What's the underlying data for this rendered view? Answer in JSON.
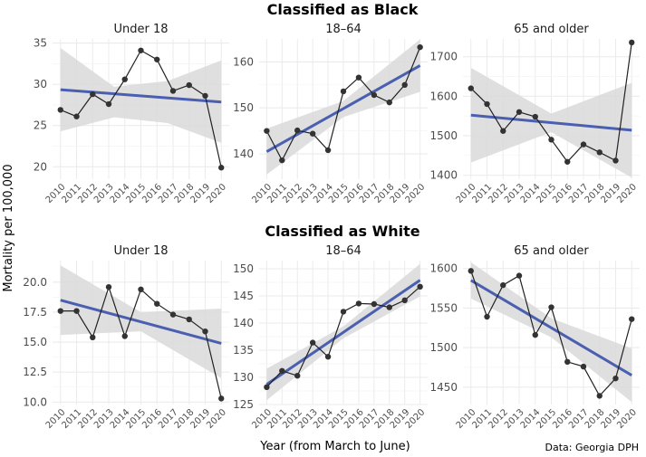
{
  "ylabel": "Mortality per 100,000",
  "xlabel": "Year (from March to June)",
  "caption": "Data: Georgia DPH",
  "colors": {
    "trend": "#4a5fb0",
    "band": "#d9d9d9",
    "line": "#222222",
    "point": "#333333",
    "grid": "#ebebeb"
  },
  "groups": [
    {
      "title": "Classified as Black"
    },
    {
      "title": "Classified as White"
    }
  ],
  "chart_data": [
    {
      "type": "line",
      "group": "Classified as Black",
      "title": "Under 18",
      "x": [
        2010,
        2011,
        2012,
        2013,
        2014,
        2015,
        2016,
        2017,
        2018,
        2019,
        2020
      ],
      "y": [
        26.9,
        26.1,
        28.8,
        27.6,
        30.6,
        34.1,
        33.0,
        29.2,
        29.9,
        28.6,
        19.9
      ],
      "ylim": [
        18.5,
        35.5
      ],
      "yticks": [
        20,
        25,
        30,
        35
      ],
      "trend": [
        29.35,
        27.85
      ],
      "band_lower": [
        24.3,
        26.0,
        25.3,
        22.9
      ],
      "band_upper": [
        34.4,
        29.7,
        30.4,
        32.9
      ]
    },
    {
      "type": "line",
      "group": "Classified as Black",
      "title": "18–64",
      "x": [
        2010,
        2011,
        2012,
        2013,
        2014,
        2015,
        2016,
        2017,
        2018,
        2019,
        2020
      ],
      "y": [
        145.0,
        138.6,
        145.1,
        144.4,
        140.8,
        153.6,
        156.6,
        152.8,
        151.2,
        155.0,
        163.2
      ],
      "ylim": [
        134.5,
        165
      ],
      "yticks": [
        140,
        150,
        160
      ],
      "trend": [
        140.5,
        159.2
      ],
      "band_lower": [
        135.5,
        148.0,
        153.5
      ],
      "band_upper": [
        145.5,
        151.5,
        164.9
      ]
    },
    {
      "type": "line",
      "group": "Classified as Black",
      "title": "65 and older",
      "x": [
        2010,
        2011,
        2012,
        2013,
        2014,
        2015,
        2016,
        2017,
        2018,
        2019,
        2020
      ],
      "y": [
        1620,
        1580,
        1512,
        1560,
        1548,
        1490,
        1434,
        1478,
        1458,
        1437,
        1736
      ],
      "ylim": [
        1390,
        1745
      ],
      "yticks": [
        1400,
        1500,
        1600,
        1700
      ],
      "trend": [
        1552,
        1514
      ],
      "band_lower": [
        1432,
        1509,
        1394
      ],
      "band_upper": [
        1672,
        1556,
        1634
      ]
    },
    {
      "type": "line",
      "group": "Classified as White",
      "title": "Under 18",
      "x": [
        2010,
        2011,
        2012,
        2013,
        2014,
        2015,
        2016,
        2017,
        2018,
        2019,
        2020
      ],
      "y": [
        17.6,
        17.6,
        15.4,
        19.6,
        15.5,
        19.4,
        18.2,
        17.3,
        16.9,
        15.9,
        10.3
      ],
      "ylim": [
        9.8,
        21.8
      ],
      "yticks": [
        10.0,
        12.5,
        15.0,
        17.5,
        20.0
      ],
      "trend": [
        18.5,
        14.9
      ],
      "band_lower": [
        15.6,
        15.9,
        12.0
      ],
      "band_upper": [
        21.4,
        17.5,
        17.8
      ]
    },
    {
      "type": "line",
      "group": "Classified as White",
      "title": "18–64",
      "x": [
        2010,
        2011,
        2012,
        2013,
        2014,
        2015,
        2016,
        2017,
        2018,
        2019,
        2020
      ],
      "y": [
        128.2,
        131.2,
        130.3,
        136.4,
        133.8,
        142.1,
        143.6,
        143.5,
        142.9,
        144.2,
        146.7
      ],
      "ylim": [
        125,
        151.5
      ],
      "yticks": [
        125,
        130,
        135,
        140,
        145,
        150
      ],
      "trend": [
        128.7,
        147.9
      ],
      "band_lower": [
        125.8,
        137.2,
        144.9
      ],
      "band_upper": [
        131.6,
        139.4,
        150.9
      ]
    },
    {
      "type": "line",
      "group": "Classified as White",
      "title": "65 and older",
      "x": [
        2010,
        2011,
        2012,
        2013,
        2014,
        2015,
        2016,
        2017,
        2018,
        2019,
        2020
      ],
      "y": [
        1597,
        1539,
        1579,
        1591,
        1516,
        1551,
        1482,
        1476,
        1439,
        1461,
        1536
      ],
      "ylim": [
        1428,
        1610
      ],
      "yticks": [
        1450,
        1500,
        1550,
        1600
      ],
      "trend": [
        1585,
        1465
      ],
      "band_lower": [
        1562,
        1513,
        1431
      ],
      "band_upper": [
        1608,
        1537,
        1499
      ]
    }
  ]
}
